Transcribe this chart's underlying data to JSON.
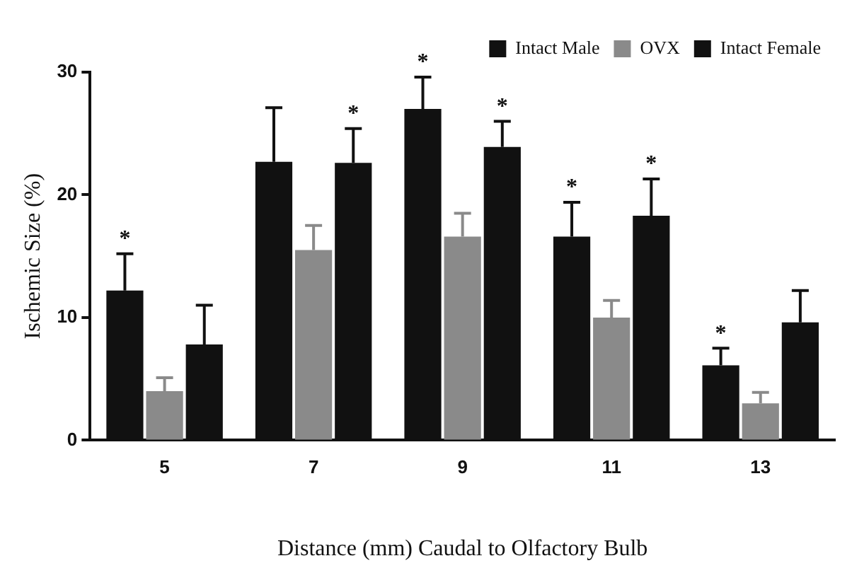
{
  "chart_data": {
    "type": "bar",
    "xlabel": "Distance (mm) Caudal to Olfactory Bulb",
    "ylabel": "Ischemic Size (%)",
    "categories": [
      "5",
      "7",
      "9",
      "11",
      "13"
    ],
    "series": [
      {
        "name": "Intact Male",
        "color": "#111111",
        "values": [
          12.2,
          22.7,
          27.0,
          16.6,
          6.1
        ],
        "errors": [
          [
            12.2,
            15.2
          ],
          [
            22.7,
            27.1
          ],
          [
            27.0,
            29.6
          ],
          [
            16.6,
            19.4
          ],
          [
            6.1,
            7.5
          ]
        ],
        "value_labels": [
          "*",
          null,
          "*",
          "*",
          "*"
        ]
      },
      {
        "name": "OVX",
        "color": "#8a8a8a",
        "values": [
          4.0,
          15.5,
          16.6,
          10.0,
          3.0
        ],
        "errors": [
          [
            4.0,
            5.1
          ],
          [
            15.5,
            17.5
          ],
          [
            16.6,
            18.5
          ],
          [
            10.0,
            11.4
          ],
          [
            3.0,
            3.9
          ]
        ]
      },
      {
        "name": "Intact Female",
        "color": "#111111",
        "values": [
          7.8,
          22.6,
          23.9,
          18.3,
          9.6
        ],
        "errors": [
          [
            7.8,
            11.0
          ],
          [
            22.6,
            25.4
          ],
          [
            23.9,
            26.0
          ],
          [
            18.3,
            21.3
          ],
          [
            9.6,
            12.2
          ]
        ],
        "value_labels": [
          null,
          "*",
          "*",
          "*",
          null
        ]
      }
    ],
    "ylim": [
      0,
      30
    ],
    "yticks": [
      0,
      10,
      20,
      30
    ],
    "grid": false,
    "legend": "top right"
  }
}
